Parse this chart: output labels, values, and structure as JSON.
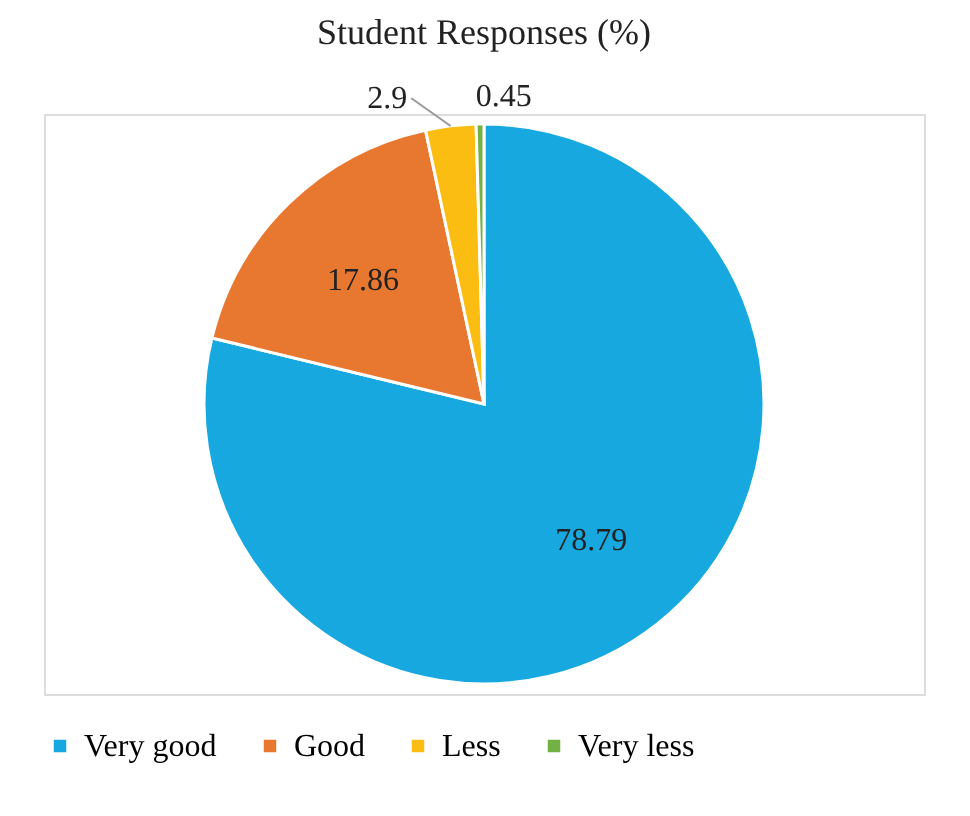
{
  "chart_data": {
    "type": "pie",
    "title": "Student Responses (%)",
    "categories": [
      "Very good",
      "Good",
      "Less",
      "Very less"
    ],
    "values": [
      78.79,
      17.86,
      2.9,
      0.45
    ],
    "colors": [
      "#18a8e0",
      "#e8782f",
      "#fbbd12",
      "#72b144"
    ],
    "data_labels": true,
    "legend": "bottom"
  }
}
